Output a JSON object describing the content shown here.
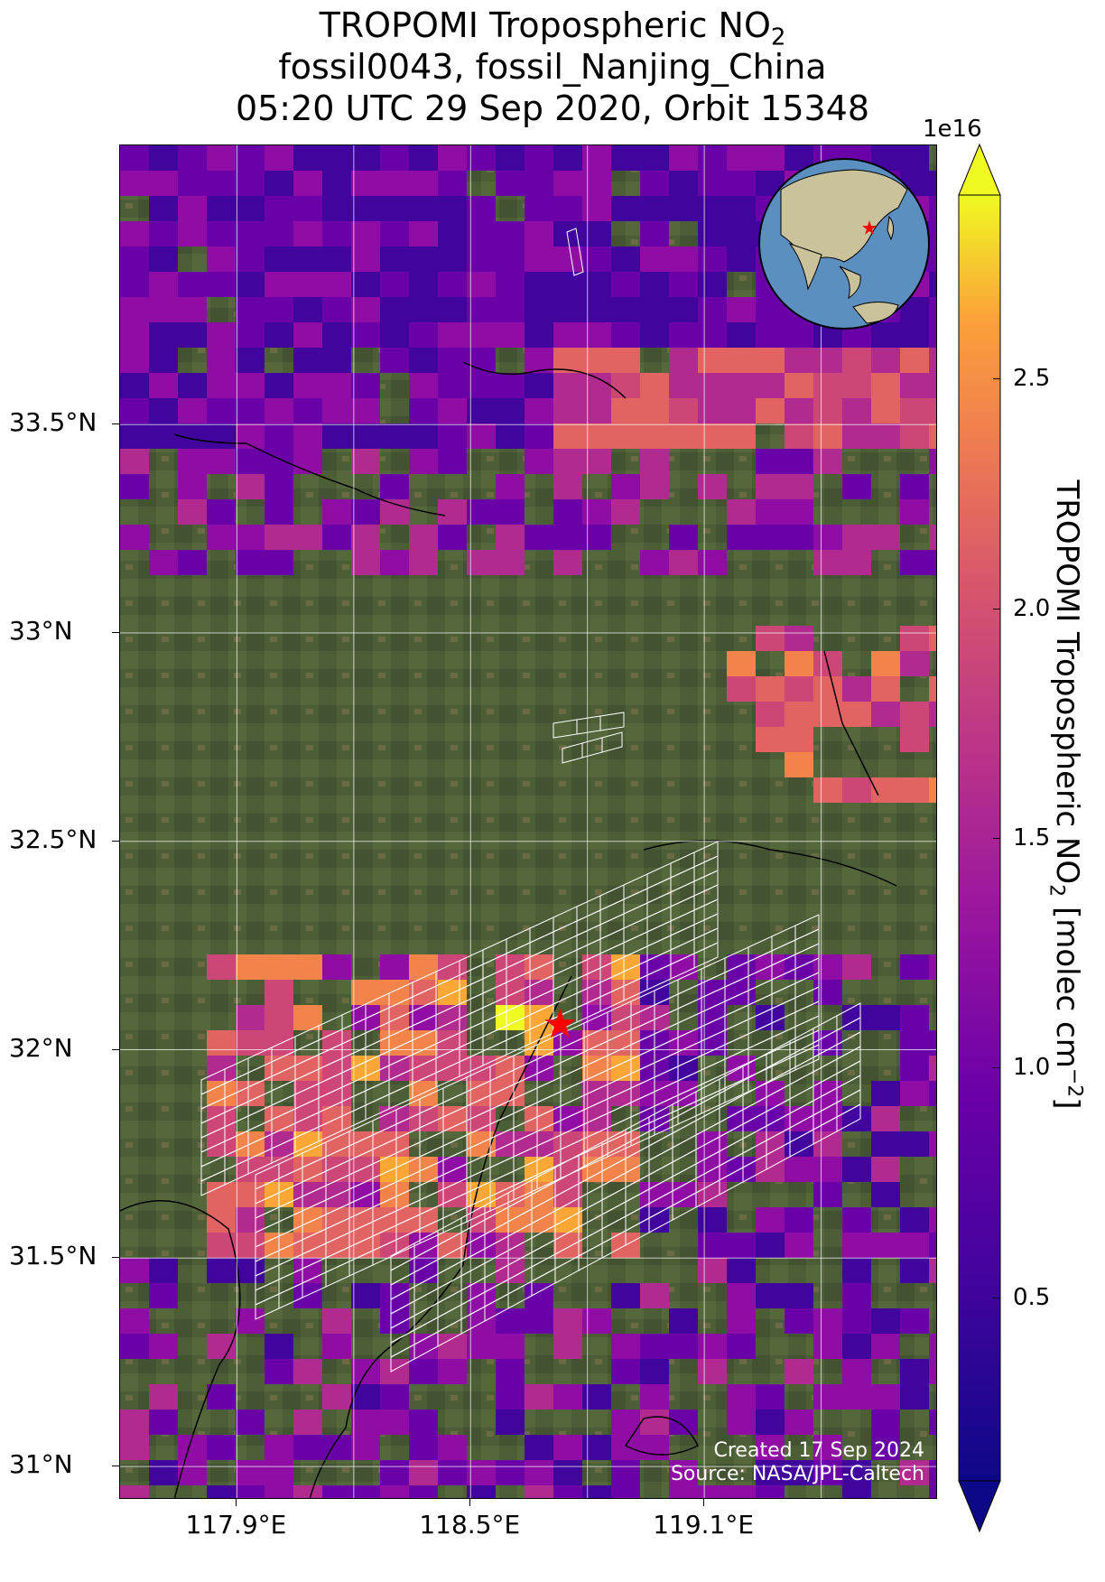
{
  "title": {
    "line1_prefix": "TROPOMI Tropospheric NO",
    "line1_sub": "2",
    "line2": "fossil0043, fossil_Nanjing_China",
    "line3": "05:20 UTC 29 Sep 2020, Orbit 15348"
  },
  "axes": {
    "lat_ticks": [
      "33.5°N",
      "33°N",
      "32.5°N",
      "32°N",
      "31.5°N",
      "31°N"
    ],
    "lat_values": [
      33.5,
      33.0,
      32.5,
      32.0,
      31.5,
      31.0
    ],
    "lon_ticks": [
      "117.9°E",
      "118.5°E",
      "119.1°E"
    ],
    "lon_values": [
      117.9,
      118.5,
      119.1
    ],
    "lon_range": [
      117.6,
      119.7
    ],
    "lat_range": [
      30.92,
      34.17
    ],
    "grid": "on",
    "gridlines_lon": [
      117.9,
      118.2,
      118.5,
      118.8,
      119.1,
      119.4
    ],
    "gridlines_lat": [
      33.5,
      33.0,
      32.5,
      32.0,
      31.5,
      31.0
    ]
  },
  "colorbar": {
    "exponent": "1e16",
    "ticks": [
      "0.5",
      "1.0",
      "1.5",
      "2.0",
      "2.5"
    ],
    "tick_values": [
      0.5,
      1.0,
      1.5,
      2.0,
      2.5
    ],
    "range": [
      0.1,
      2.9
    ],
    "extend": "both",
    "colormap": "plasma",
    "title_prefix": "TROPOMI Tropospheric NO",
    "title_sub": "2",
    "title_suffix": " [molec cm",
    "title_sup": "−2",
    "title_end": "]"
  },
  "target": {
    "marker": "red-star",
    "lon": 118.73,
    "lat": 32.06,
    "color": "#ff0000"
  },
  "inset_globe": {
    "marker": "red-star",
    "ocean_color": "#5b8fbf",
    "land_color": "#c9c29a"
  },
  "credit": {
    "line1": "Created 17 Sep 2024",
    "line2": "Source: NASA/JPL-Caltech"
  },
  "colors": {
    "background_land": "#4b5e36",
    "river": "#000000",
    "oco_footprint": "#ffffff"
  }
}
